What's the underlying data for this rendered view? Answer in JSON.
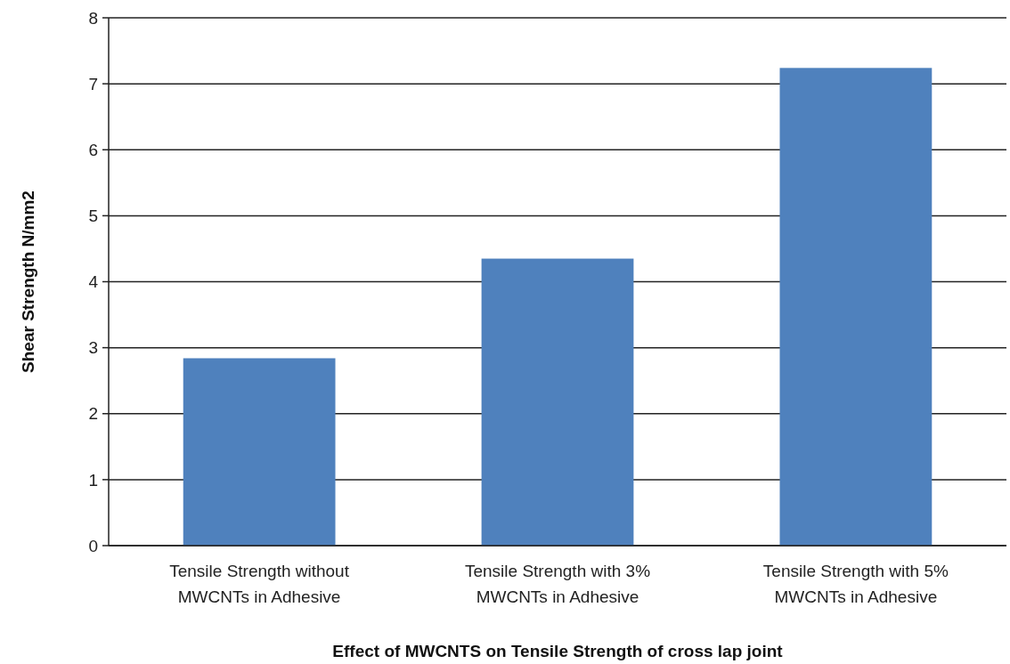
{
  "chart_data": {
    "type": "bar",
    "xlabel": "Effect of MWCNTS on Tensile Strength of cross lap joint",
    "ylabel": "Shear Strength N/mm2",
    "categories": [
      "Tensile Strength without MWCNTs in Adhesive",
      "Tensile Strength with 3% MWCNTs in Adhesive",
      "Tensile Strength with 5% MWCNTs in Adhesive"
    ],
    "values": [
      2.84,
      4.35,
      7.24
    ],
    "color": "#4f81bd",
    "ylim": [
      0,
      8
    ],
    "yticks": [
      0,
      1,
      2,
      3,
      4,
      5,
      6,
      7,
      8
    ],
    "grid": "y"
  }
}
